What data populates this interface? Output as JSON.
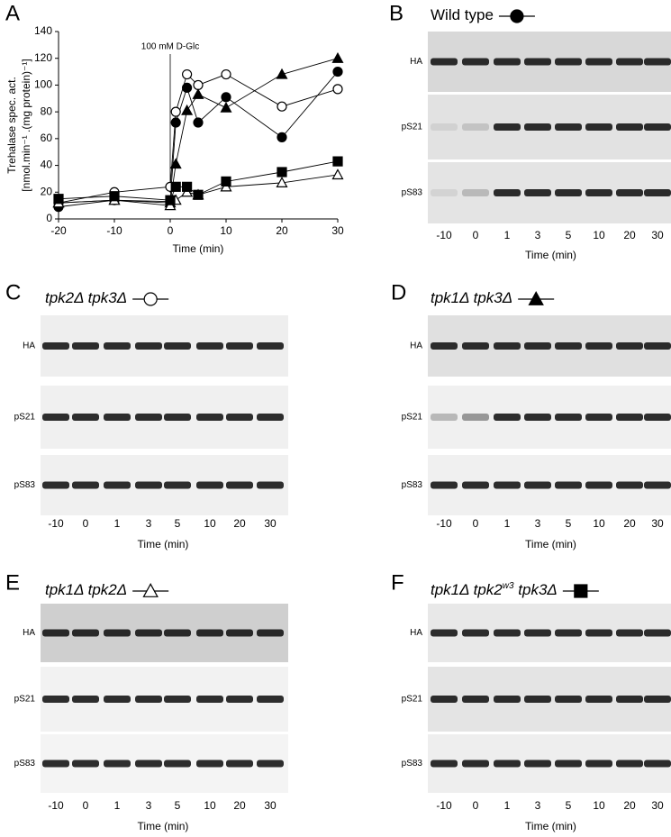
{
  "chart_data": {
    "type": "line",
    "panel_label": "A",
    "annotation": "100 mM D-Glc",
    "ylabel": [
      "Trehalase spec. act.",
      "[nmol.min⁻¹ .(mg protein)⁻¹]"
    ],
    "xlabel": "Time (min)",
    "x": [
      -20,
      -10,
      0,
      1,
      3,
      5,
      10,
      20,
      30
    ],
    "xlim": [
      -20,
      30
    ],
    "xticks": [
      -20,
      -10,
      0,
      10,
      20,
      30
    ],
    "ylim": [
      0,
      140
    ],
    "yticks": [
      0,
      20,
      40,
      60,
      80,
      100,
      120,
      140
    ],
    "series": [
      {
        "marker": "circle",
        "filled": true,
        "color": "#000000",
        "values": [
          9,
          14,
          13,
          72,
          98,
          72,
          91,
          61,
          110
        ]
      },
      {
        "marker": "circle",
        "filled": false,
        "color": "#000000",
        "values": [
          12,
          20,
          24,
          80,
          108,
          100,
          108,
          84,
          97
        ]
      },
      {
        "marker": "triangle",
        "filled": true,
        "color": "#000000",
        "values": [
          12,
          14,
          12,
          41,
          81,
          93,
          83,
          108,
          120
        ]
      },
      {
        "marker": "triangle",
        "filled": false,
        "color": "#000000",
        "values": [
          12,
          14,
          10,
          14,
          20,
          18,
          24,
          27,
          33
        ]
      },
      {
        "marker": "square",
        "filled": true,
        "color": "#000000",
        "values": [
          15,
          17,
          14,
          24,
          24,
          18,
          28,
          35,
          43
        ]
      }
    ]
  },
  "panels": [
    {
      "label": "B",
      "title": [
        {
          "text": "Wild type"
        }
      ],
      "italic": false,
      "marker": "circle",
      "filled": true,
      "rows": [
        "HA",
        "pS21",
        "pS83"
      ],
      "lanes": [
        -10,
        0,
        1,
        3,
        5,
        10,
        20,
        30
      ],
      "xlabel": "Time (min)"
    },
    {
      "label": "C",
      "title": [
        {
          "text": "tpk2Δ tpk3Δ"
        }
      ],
      "italic": true,
      "marker": "circle",
      "filled": false,
      "rows": [
        "HA",
        "pS21",
        "pS83"
      ],
      "lanes": [
        -10,
        0,
        1,
        3,
        5,
        10,
        20,
        30
      ],
      "xlabel": "Time (min)"
    },
    {
      "label": "D",
      "title": [
        {
          "text": "tpk1Δ tpk3Δ"
        }
      ],
      "italic": true,
      "marker": "triangle",
      "filled": true,
      "rows": [
        "HA",
        "pS21",
        "pS83"
      ],
      "lanes": [
        -10,
        0,
        1,
        3,
        5,
        10,
        20,
        30
      ],
      "xlabel": "Time (min)"
    },
    {
      "label": "E",
      "title": [
        {
          "text": "tpk1Δ tpk2Δ"
        }
      ],
      "italic": true,
      "marker": "triangle",
      "filled": false,
      "rows": [
        "HA",
        "pS21",
        "pS83"
      ],
      "lanes": [
        -10,
        0,
        1,
        3,
        5,
        10,
        20,
        30
      ],
      "xlabel": "Time (min)"
    },
    {
      "label": "F",
      "title": [
        {
          "text": "tpk1Δ tpk2"
        },
        {
          "text": "w3",
          "sup": true
        },
        {
          "text": "tpk3Δ"
        }
      ],
      "italic": true,
      "marker": "square",
      "filled": true,
      "rows": [
        "HA",
        "pS21",
        "pS83"
      ],
      "lanes": [
        -10,
        0,
        1,
        3,
        5,
        10,
        20,
        30
      ],
      "xlabel": "Time (min)"
    }
  ]
}
